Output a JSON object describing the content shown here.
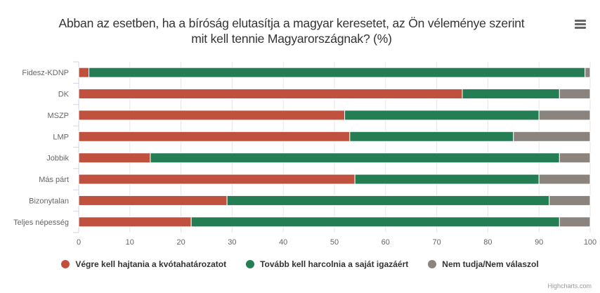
{
  "chart_data": {
    "type": "bar",
    "orientation": "horizontal",
    "stacked": true,
    "title": "Abban az esetben, ha a bíróság elutasítja a magyar keresetet, az Ön véleménye szerint mit kell tennie Magyarországnak? (%)",
    "title_line1": "Abban az esetben, ha a bíróság elutasítja a magyar keresetet, az Ön véleménye szerint",
    "title_line2": "mit kell tennie Magyarországnak? (%)",
    "categories": [
      "Fidesz-KDNP",
      "DK",
      "MSZP",
      "LMP",
      "Jobbik",
      "Más párt",
      "Bizonytalan",
      "Teljes népesség"
    ],
    "series": [
      {
        "name": "Végre kell hajtania a kvótahatározatot",
        "color": "#c0513f",
        "values": [
          2,
          75,
          52,
          53,
          14,
          54,
          29,
          22
        ]
      },
      {
        "name": "Tovább kell harcolnia a saját igazáért",
        "color": "#257d54",
        "values": [
          97,
          19,
          38,
          32,
          80,
          36,
          63,
          72
        ]
      },
      {
        "name": "Nem tudja/Nem válaszol",
        "color": "#8b837e",
        "values": [
          1,
          6,
          10,
          15,
          6,
          10,
          8,
          6
        ]
      }
    ],
    "xlim": [
      0,
      100
    ],
    "xticks": [
      "0",
      "10",
      "20",
      "30",
      "40",
      "50",
      "60",
      "70",
      "80",
      "90",
      "100"
    ],
    "grid": true,
    "legend_position": "bottom"
  },
  "credits": "Highcharts.com"
}
